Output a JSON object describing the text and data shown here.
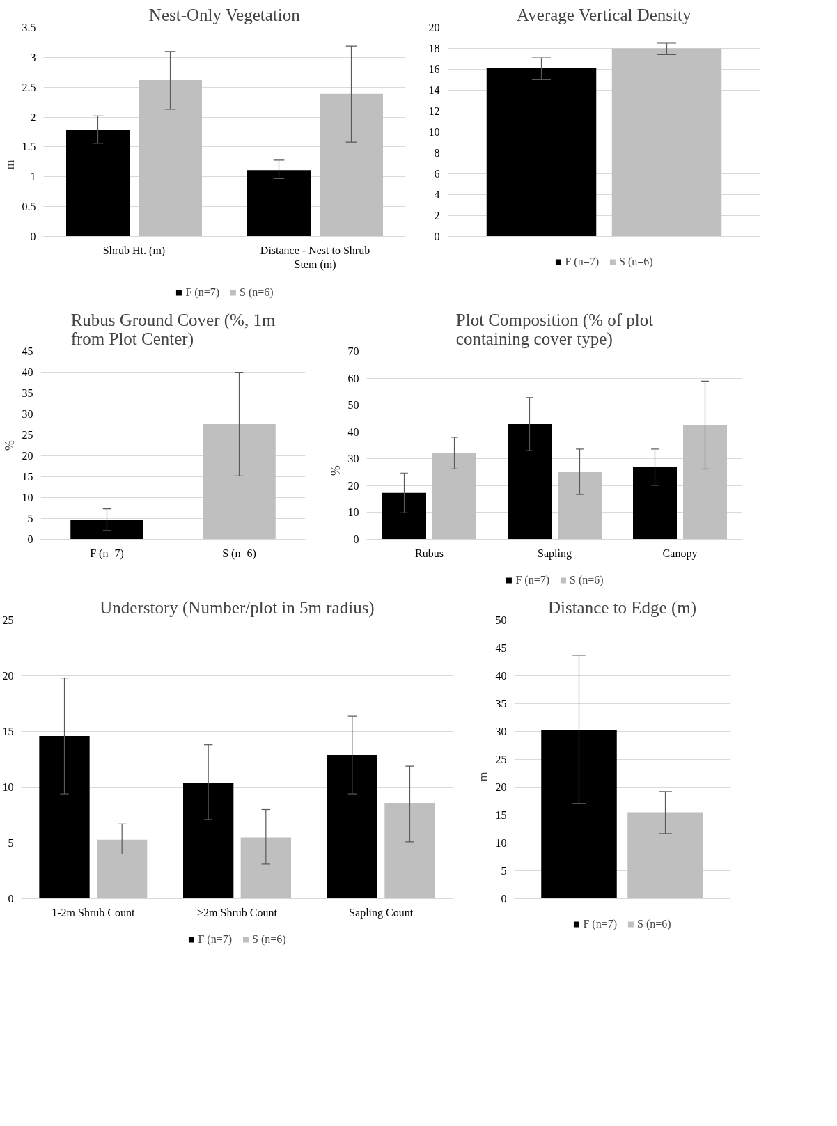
{
  "chart_data": [
    {
      "type": "bar",
      "title": "Nest-Only Vegetation",
      "ylabel": "m",
      "categories": [
        "Shrub Ht. (m)",
        "Distance - Nest to Shrub Stem (m)"
      ],
      "ylim": [
        0,
        3.5
      ],
      "yticks": [
        0,
        0.5,
        1,
        1.5,
        2,
        2.5,
        3,
        3.5
      ],
      "grid": "y",
      "legend": "bottom",
      "series": [
        {
          "name": "F (n=7)",
          "color": "#000000",
          "values": [
            1.78,
            1.11
          ],
          "errors": [
            [
              1.56,
              2.02
            ],
            [
              0.97,
              1.28
            ]
          ]
        },
        {
          "name": "S (n=6)",
          "color": "#bfbfbf",
          "values": [
            2.62,
            2.39
          ],
          "errors": [
            [
              2.13,
              3.1
            ],
            [
              1.58,
              3.19
            ]
          ]
        }
      ]
    },
    {
      "type": "bar",
      "title": "Average Vertical Density",
      "categories": [
        null
      ],
      "ylim": [
        0,
        20
      ],
      "yticks": [
        0,
        2,
        4,
        6,
        8,
        10,
        12,
        14,
        16,
        18,
        20
      ],
      "grid": "y",
      "legend": "bottom",
      "series": [
        {
          "name": "F (n=7)",
          "color": "#000000",
          "values": [
            16.1
          ],
          "errors": [
            [
              15.0,
              17.1
            ]
          ]
        },
        {
          "name": "S (n=6)",
          "color": "#bfbfbf",
          "values": [
            18.0
          ],
          "errors": [
            [
              17.4,
              18.5
            ]
          ]
        }
      ]
    },
    {
      "type": "bar",
      "title": "Rubus Ground Cover (%, 1m from Plot Center)",
      "ylabel": "%",
      "categories": [
        "F (n=7)",
        "S (n=6)"
      ],
      "ylim": [
        0,
        45
      ],
      "yticks": [
        0,
        5,
        10,
        15,
        20,
        25,
        30,
        35,
        40,
        45
      ],
      "grid": "y",
      "series": [
        {
          "colors": [
            "#000000",
            "#bfbfbf"
          ],
          "values": [
            4.6,
            27.6
          ],
          "errors": [
            [
              2.1,
              7.3
            ],
            [
              15.2,
              40.0
            ]
          ]
        }
      ]
    },
    {
      "type": "bar",
      "title": "Plot Composition (% of plot containing cover type)",
      "ylabel": "%",
      "categories": [
        "Rubus",
        "Sapling",
        "Canopy"
      ],
      "ylim": [
        0,
        70
      ],
      "yticks": [
        0,
        10,
        20,
        30,
        40,
        50,
        60,
        70
      ],
      "grid": "y",
      "legend": "bottom",
      "series": [
        {
          "name": "F (n=7)",
          "color": "#000000",
          "values": [
            17.3,
            42.9,
            26.9
          ],
          "errors": [
            [
              9.9,
              24.7
            ],
            [
              33.0,
              52.8
            ],
            [
              20.1,
              33.6
            ]
          ]
        },
        {
          "name": "S (n=6)",
          "color": "#bfbfbf",
          "values": [
            32.1,
            25.0,
            42.6
          ],
          "errors": [
            [
              26.2,
              38.0
            ],
            [
              16.7,
              33.6
            ],
            [
              26.2,
              58.9
            ]
          ]
        }
      ]
    },
    {
      "type": "bar",
      "title": "Understory (Number/plot in 5m radius)",
      "categories": [
        "1-2m Shrub Count",
        ">2m Shrub Count",
        "Sapling Count"
      ],
      "ylim": [
        0,
        25
      ],
      "yticks": [
        0,
        5,
        10,
        15,
        20,
        25
      ],
      "grid": "y",
      "legend": "bottom",
      "series": [
        {
          "name": "F (n=7)",
          "color": "#000000",
          "values": [
            14.6,
            10.4,
            12.9
          ],
          "errors": [
            [
              9.4,
              19.8
            ],
            [
              7.1,
              13.8
            ],
            [
              9.4,
              16.4
            ]
          ]
        },
        {
          "name": "S (n=6)",
          "color": "#bfbfbf",
          "values": [
            5.3,
            5.5,
            8.6
          ],
          "errors": [
            [
              4.0,
              6.7
            ],
            [
              3.1,
              8.0
            ],
            [
              5.1,
              11.9
            ]
          ]
        }
      ]
    },
    {
      "type": "bar",
      "title": "Distance to Edge (m)",
      "ylabel": "m",
      "categories": [
        null
      ],
      "ylim": [
        0,
        50
      ],
      "yticks": [
        0,
        5,
        10,
        15,
        20,
        25,
        30,
        35,
        40,
        45,
        50
      ],
      "grid": "y",
      "legend": "bottom",
      "series": [
        {
          "name": "F (n=7)",
          "color": "#000000",
          "values": [
            30.3
          ],
          "errors": [
            [
              17.1,
              43.7
            ]
          ]
        },
        {
          "name": "S (n=6)",
          "color": "#bfbfbf",
          "values": [
            15.5
          ],
          "errors": [
            [
              11.7,
              19.2
            ]
          ]
        }
      ]
    }
  ]
}
